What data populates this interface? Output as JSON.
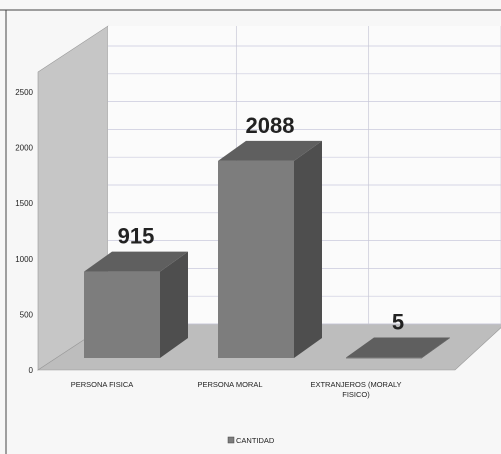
{
  "chart_data": {
    "type": "bar",
    "categories": [
      "PERSONA FISICA",
      "PERSONA MORAL",
      "EXTRANJEROS (MORAL Y FISICO)"
    ],
    "category_lines": [
      [
        "PERSONA FISICA"
      ],
      [
        "PERSONA MORAL"
      ],
      [
        "EXTRANJEROS (MORALY",
        "FISICO)"
      ]
    ],
    "series": [
      {
        "name": "CANTIDAD",
        "values": [
          915,
          2088,
          5
        ]
      }
    ],
    "data_labels": [
      "915",
      "2088",
      "5"
    ],
    "yticks": [
      0,
      500,
      1000,
      1500,
      2000,
      2500
    ],
    "ylim": [
      0,
      2500
    ],
    "title": "",
    "xlabel": "",
    "ylabel": "",
    "grid": true,
    "legend": "bottom",
    "colors": {
      "bar_front": "#7d7d7d",
      "bar_top": "#5f5f5f",
      "bar_side": "#4e4e4e",
      "wall": "#c6c6c6",
      "back_wall": "#fbfbfb",
      "floor": "#bdbdbd",
      "grid": "#c9c9dc"
    }
  }
}
